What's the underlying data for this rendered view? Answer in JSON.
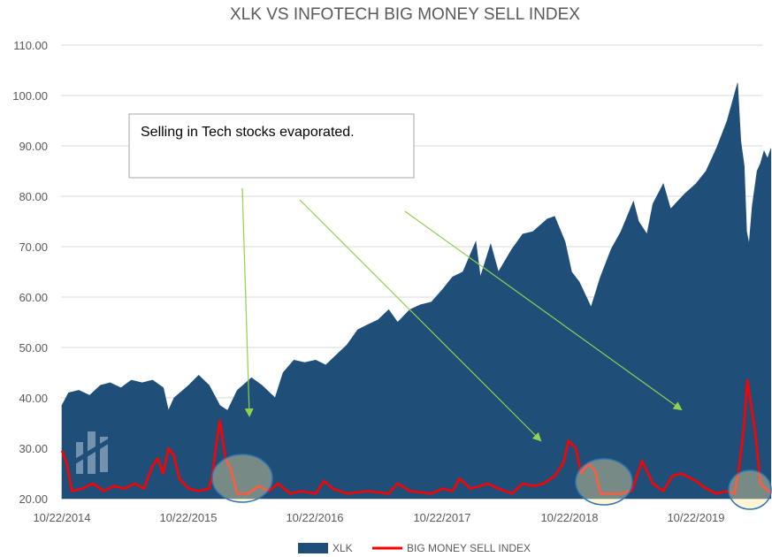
{
  "chart_data": {
    "type": "area",
    "title": "XLK VS INFOTECH BIG MONEY SELL INDEX",
    "xlabel": "",
    "ylabel": "",
    "ylim": [
      20,
      110
    ],
    "y_ticks": [
      "20.00",
      "30.00",
      "40.00",
      "50.00",
      "60.00",
      "70.00",
      "80.00",
      "90.00",
      "100.00",
      "110.00"
    ],
    "x_ticks": [
      "10/22/2014",
      "10/22/2015",
      "10/22/2016",
      "10/22/2017",
      "10/22/2018",
      "10/22/2019"
    ],
    "grid": true,
    "legend_position": "bottom",
    "series": [
      {
        "name": "XLK",
        "kind": "area",
        "color": "#1F4E79",
        "points": [
          [
            "2014-10-22",
            38.5
          ],
          [
            "2014-11-10",
            41.0
          ],
          [
            "2014-12-10",
            41.5
          ],
          [
            "2015-01-10",
            40.5
          ],
          [
            "2015-02-10",
            42.5
          ],
          [
            "2015-03-10",
            43.0
          ],
          [
            "2015-04-10",
            42.0
          ],
          [
            "2015-05-10",
            43.5
          ],
          [
            "2015-06-10",
            43.0
          ],
          [
            "2015-07-10",
            43.5
          ],
          [
            "2015-08-10",
            42.0
          ],
          [
            "2015-08-25",
            37.5
          ],
          [
            "2015-09-10",
            40.0
          ],
          [
            "2015-10-22",
            42.5
          ],
          [
            "2015-11-20",
            44.5
          ],
          [
            "2015-12-20",
            42.5
          ],
          [
            "2016-01-20",
            38.5
          ],
          [
            "2016-02-11",
            37.5
          ],
          [
            "2016-03-10",
            41.5
          ],
          [
            "2016-04-20",
            44.0
          ],
          [
            "2016-05-20",
            42.5
          ],
          [
            "2016-06-27",
            40.0
          ],
          [
            "2016-07-20",
            45.0
          ],
          [
            "2016-08-20",
            47.5
          ],
          [
            "2016-09-20",
            47.0
          ],
          [
            "2016-10-22",
            47.5
          ],
          [
            "2016-11-20",
            46.5
          ],
          [
            "2016-12-20",
            48.5
          ],
          [
            "2017-01-20",
            50.5
          ],
          [
            "2017-02-20",
            53.5
          ],
          [
            "2017-03-20",
            54.5
          ],
          [
            "2017-04-20",
            55.5
          ],
          [
            "2017-05-20",
            57.5
          ],
          [
            "2017-06-15",
            55.0
          ],
          [
            "2017-07-20",
            57.5
          ],
          [
            "2017-08-20",
            58.5
          ],
          [
            "2017-09-20",
            59.0
          ],
          [
            "2017-10-22",
            61.5
          ],
          [
            "2017-11-20",
            64.0
          ],
          [
            "2017-12-20",
            65.0
          ],
          [
            "2018-01-26",
            71.0
          ],
          [
            "2018-02-08",
            64.0
          ],
          [
            "2018-03-10",
            70.5
          ],
          [
            "2018-04-01",
            65.0
          ],
          [
            "2018-05-10",
            69.5
          ],
          [
            "2018-06-10",
            72.5
          ],
          [
            "2018-07-10",
            73.0
          ],
          [
            "2018-08-20",
            75.5
          ],
          [
            "2018-09-10",
            76.0
          ],
          [
            "2018-10-10",
            71.0
          ],
          [
            "2018-10-29",
            65.0
          ],
          [
            "2018-11-20",
            63.0
          ],
          [
            "2018-12-24",
            58.0
          ],
          [
            "2019-01-20",
            64.0
          ],
          [
            "2019-02-20",
            69.5
          ],
          [
            "2019-03-20",
            73.0
          ],
          [
            "2019-04-25",
            79.0
          ],
          [
            "2019-05-10",
            75.0
          ],
          [
            "2019-06-03",
            72.5
          ],
          [
            "2019-06-20",
            78.5
          ],
          [
            "2019-07-20",
            82.5
          ],
          [
            "2019-08-10",
            77.5
          ],
          [
            "2019-09-20",
            80.5
          ],
          [
            "2019-10-22",
            82.5
          ],
          [
            "2019-11-20",
            85.0
          ],
          [
            "2019-12-20",
            89.5
          ],
          [
            "2020-01-20",
            95.0
          ],
          [
            "2020-02-19",
            102.5
          ],
          [
            "2020-02-28",
            91.0
          ],
          [
            "2020-03-09",
            86.0
          ],
          [
            "2020-03-16",
            73.0
          ],
          [
            "2020-03-23",
            70.5
          ],
          [
            "2020-04-01",
            78.0
          ],
          [
            "2020-04-15",
            85.0
          ],
          [
            "2020-04-25",
            86.5
          ],
          [
            "2020-05-05",
            89.0
          ],
          [
            "2020-05-15",
            87.5
          ],
          [
            "2020-05-25",
            89.5
          ]
        ]
      },
      {
        "name": "BIG MONEY SELL INDEX",
        "kind": "line",
        "color": "#FF0000",
        "points": [
          [
            "2014-10-22",
            29.5
          ],
          [
            "2014-11-05",
            27.0
          ],
          [
            "2014-11-20",
            21.5
          ],
          [
            "2014-12-20",
            22.0
          ],
          [
            "2015-01-20",
            23.0
          ],
          [
            "2015-02-20",
            21.5
          ],
          [
            "2015-03-20",
            22.5
          ],
          [
            "2015-04-20",
            22.0
          ],
          [
            "2015-05-20",
            23.0
          ],
          [
            "2015-06-15",
            22.0
          ],
          [
            "2015-07-10",
            26.5
          ],
          [
            "2015-07-25",
            28.0
          ],
          [
            "2015-08-10",
            25.0
          ],
          [
            "2015-08-25",
            30.0
          ],
          [
            "2015-09-10",
            28.5
          ],
          [
            "2015-09-25",
            24.0
          ],
          [
            "2015-10-22",
            22.0
          ],
          [
            "2015-11-20",
            21.5
          ],
          [
            "2015-12-20",
            22.0
          ],
          [
            "2015-12-30",
            25.0
          ],
          [
            "2016-01-10",
            31.0
          ],
          [
            "2016-01-20",
            35.5
          ],
          [
            "2016-02-05",
            28.0
          ],
          [
            "2016-02-20",
            26.0
          ],
          [
            "2016-03-10",
            21.0
          ],
          [
            "2016-04-10",
            21.0
          ],
          [
            "2016-05-10",
            22.5
          ],
          [
            "2016-06-10",
            21.5
          ],
          [
            "2016-07-05",
            23.0
          ],
          [
            "2016-08-10",
            21.0
          ],
          [
            "2016-09-10",
            21.5
          ],
          [
            "2016-10-22",
            21.0
          ],
          [
            "2016-11-15",
            23.5
          ],
          [
            "2016-12-10",
            22.0
          ],
          [
            "2017-01-20",
            21.0
          ],
          [
            "2017-03-20",
            21.5
          ],
          [
            "2017-05-20",
            21.0
          ],
          [
            "2017-06-15",
            23.0
          ],
          [
            "2017-07-20",
            21.5
          ],
          [
            "2017-09-20",
            21.0
          ],
          [
            "2017-10-22",
            22.0
          ],
          [
            "2017-11-20",
            21.5
          ],
          [
            "2017-12-10",
            24.0
          ],
          [
            "2018-01-10",
            22.0
          ],
          [
            "2018-02-08",
            22.5
          ],
          [
            "2018-03-01",
            23.0
          ],
          [
            "2018-04-01",
            22.0
          ],
          [
            "2018-05-10",
            21.0
          ],
          [
            "2018-06-10",
            23.0
          ],
          [
            "2018-07-10",
            22.5
          ],
          [
            "2018-08-10",
            23.0
          ],
          [
            "2018-09-10",
            24.5
          ],
          [
            "2018-10-05",
            27.0
          ],
          [
            "2018-10-20",
            31.5
          ],
          [
            "2018-11-10",
            30.0
          ],
          [
            "2018-11-25",
            25.0
          ],
          [
            "2018-12-15",
            27.0
          ],
          [
            "2019-01-05",
            25.5
          ],
          [
            "2019-01-20",
            21.0
          ],
          [
            "2019-03-20",
            21.0
          ],
          [
            "2019-04-20",
            21.5
          ],
          [
            "2019-05-20",
            27.5
          ],
          [
            "2019-06-20",
            23.0
          ],
          [
            "2019-07-20",
            21.5
          ],
          [
            "2019-08-15",
            24.5
          ],
          [
            "2019-09-10",
            25.0
          ],
          [
            "2019-10-22",
            23.5
          ],
          [
            "2019-11-20",
            22.0
          ],
          [
            "2019-12-20",
            21.0
          ],
          [
            "2020-01-20",
            21.5
          ],
          [
            "2020-02-10",
            21.0
          ],
          [
            "2020-02-25",
            27.0
          ],
          [
            "2020-03-09",
            35.0
          ],
          [
            "2020-03-18",
            43.5
          ],
          [
            "2020-03-30",
            38.0
          ],
          [
            "2020-04-10",
            33.0
          ],
          [
            "2020-04-25",
            23.0
          ],
          [
            "2020-05-25",
            21.0
          ]
        ]
      }
    ],
    "annotations": {
      "textbox": "Selling in Tech stocks evaporated.",
      "arrow_color": "#92D050",
      "highlight_color": "#FFE699",
      "highlight_outline": "#2E75B6"
    }
  }
}
